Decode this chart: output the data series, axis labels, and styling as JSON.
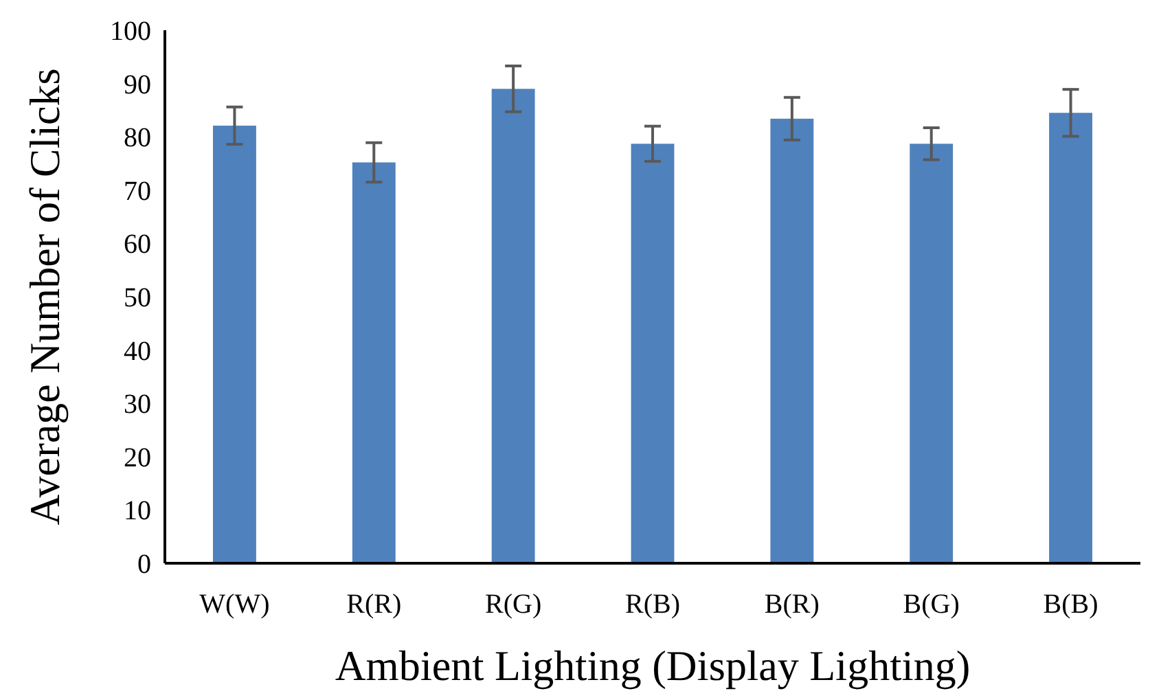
{
  "chart_data": {
    "type": "bar",
    "xlabel": "Ambient Lighting (Display Lighting)",
    "ylabel": "Average Number of Clicks",
    "categories": [
      "W(W)",
      "R(R)",
      "R(G)",
      "R(B)",
      "B(R)",
      "B(G)",
      "B(B)"
    ],
    "values": [
      82.1,
      75.2,
      89.0,
      78.7,
      83.4,
      78.7,
      84.5
    ],
    "errors": [
      3.5,
      3.7,
      4.3,
      3.3,
      4.0,
      3.0,
      4.4
    ],
    "color": "#4f81bd",
    "ylim": [
      0,
      100
    ],
    "yticks": [
      0,
      10,
      20,
      30,
      40,
      50,
      60,
      70,
      80,
      90,
      100
    ],
    "grid": false
  }
}
